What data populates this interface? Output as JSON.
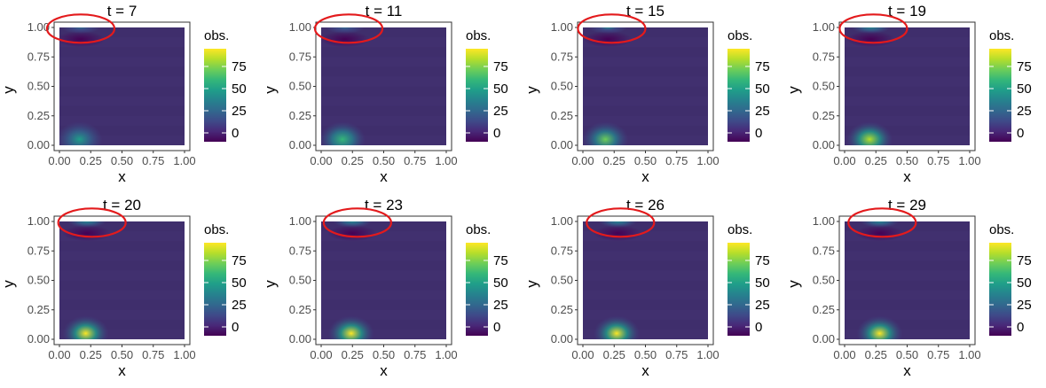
{
  "legend_title": "obs.",
  "colors": {
    "background": "#41306f",
    "circle": "#e31a1c",
    "axis": "#333333"
  },
  "chart_data": [
    {
      "type": "heatmap",
      "title": "t = 7",
      "xlabel": "x",
      "ylabel": "y",
      "xlim": [
        0,
        1
      ],
      "ylim": [
        0,
        1
      ],
      "x_ticks": [
        "0.00",
        "0.25",
        "0.50",
        "0.75",
        "1.00"
      ],
      "y_ticks": [
        "0.00",
        "0.25",
        "0.50",
        "0.75",
        "1.00"
      ],
      "legend": {
        "title": "obs.",
        "ticks": [
          "0",
          "25",
          "50",
          "75"
        ],
        "range": [
          -10,
          95
        ]
      },
      "hotspots": [
        {
          "x": 0.16,
          "y": 0.05,
          "value": 45
        },
        {
          "x": 0.17,
          "y": 1.0,
          "value": 25
        }
      ],
      "coldspots": [
        {
          "x": 0.17,
          "y": 0.9,
          "value": -8
        }
      ],
      "annotation": {
        "shape": "ellipse",
        "cx": 0.17,
        "cy": 0.99
      }
    },
    {
      "type": "heatmap",
      "title": "t = 11",
      "xlabel": "x",
      "ylabel": "y",
      "xlim": [
        0,
        1
      ],
      "ylim": [
        0,
        1
      ],
      "x_ticks": [
        "0.00",
        "0.25",
        "0.50",
        "0.75",
        "1.00"
      ],
      "y_ticks": [
        "0.00",
        "0.25",
        "0.50",
        "0.75",
        "1.00"
      ],
      "legend": {
        "title": "obs.",
        "ticks": [
          "0",
          "25",
          "50",
          "75"
        ],
        "range": [
          -10,
          95
        ]
      },
      "hotspots": [
        {
          "x": 0.17,
          "y": 0.05,
          "value": 60
        },
        {
          "x": 0.19,
          "y": 1.0,
          "value": 30
        }
      ],
      "coldspots": [
        {
          "x": 0.19,
          "y": 0.9,
          "value": -9
        }
      ],
      "annotation": {
        "shape": "ellipse",
        "cx": 0.22,
        "cy": 0.99
      }
    },
    {
      "type": "heatmap",
      "title": "t = 15",
      "xlabel": "x",
      "ylabel": "y",
      "xlim": [
        0,
        1
      ],
      "ylim": [
        0,
        1
      ],
      "x_ticks": [
        "0.00",
        "0.25",
        "0.50",
        "0.75",
        "1.00"
      ],
      "y_ticks": [
        "0.00",
        "0.25",
        "0.50",
        "0.75",
        "1.00"
      ],
      "legend": {
        "title": "obs.",
        "ticks": [
          "0",
          "25",
          "50",
          "75"
        ],
        "range": [
          -10,
          95
        ]
      },
      "hotspots": [
        {
          "x": 0.18,
          "y": 0.05,
          "value": 70
        },
        {
          "x": 0.2,
          "y": 1.0,
          "value": 35
        }
      ],
      "coldspots": [
        {
          "x": 0.2,
          "y": 0.9,
          "value": -10
        }
      ],
      "annotation": {
        "shape": "ellipse",
        "cx": 0.23,
        "cy": 0.99
      }
    },
    {
      "type": "heatmap",
      "title": "t = 19",
      "xlabel": "x",
      "ylabel": "y",
      "xlim": [
        0,
        1
      ],
      "ylim": [
        0,
        1
      ],
      "x_ticks": [
        "0.00",
        "0.25",
        "0.50",
        "0.75",
        "1.00"
      ],
      "y_ticks": [
        "0.00",
        "0.25",
        "0.50",
        "0.75",
        "1.00"
      ],
      "legend": {
        "title": "obs.",
        "ticks": [
          "0",
          "25",
          "50",
          "75"
        ],
        "range": [
          -10,
          95
        ]
      },
      "hotspots": [
        {
          "x": 0.2,
          "y": 0.05,
          "value": 85
        },
        {
          "x": 0.21,
          "y": 1.0,
          "value": 40
        }
      ],
      "coldspots": [
        {
          "x": 0.21,
          "y": 0.9,
          "value": -10
        }
      ],
      "annotation": {
        "shape": "ellipse",
        "cx": 0.23,
        "cy": 0.99
      }
    },
    {
      "type": "heatmap",
      "title": "t = 20",
      "xlabel": "x",
      "ylabel": "y",
      "xlim": [
        0,
        1
      ],
      "ylim": [
        0,
        1
      ],
      "x_ticks": [
        "0.00",
        "0.25",
        "0.50",
        "0.75",
        "1.00"
      ],
      "y_ticks": [
        "0.00",
        "0.25",
        "0.50",
        "0.75",
        "1.00"
      ],
      "legend": {
        "title": "obs.",
        "ticks": [
          "0",
          "25",
          "50",
          "75"
        ],
        "range": [
          -10,
          95
        ]
      },
      "hotspots": [
        {
          "x": 0.21,
          "y": 0.05,
          "value": 90
        },
        {
          "x": 0.22,
          "y": 1.0,
          "value": 40
        }
      ],
      "coldspots": [
        {
          "x": 0.22,
          "y": 0.9,
          "value": -10
        }
      ],
      "annotation": {
        "shape": "ellipse",
        "cx": 0.26,
        "cy": 0.99
      }
    },
    {
      "type": "heatmap",
      "title": "t = 23",
      "xlabel": "x",
      "ylabel": "y",
      "xlim": [
        0,
        1
      ],
      "ylim": [
        0,
        1
      ],
      "x_ticks": [
        "0.00",
        "0.25",
        "0.50",
        "0.75",
        "1.00"
      ],
      "y_ticks": [
        "0.00",
        "0.25",
        "0.50",
        "0.75",
        "1.00"
      ],
      "legend": {
        "title": "obs.",
        "ticks": [
          "0",
          "25",
          "50",
          "75"
        ],
        "range": [
          -10,
          95
        ]
      },
      "hotspots": [
        {
          "x": 0.24,
          "y": 0.05,
          "value": 95
        },
        {
          "x": 0.25,
          "y": 1.0,
          "value": 42
        }
      ],
      "coldspots": [
        {
          "x": 0.25,
          "y": 0.9,
          "value": -10
        }
      ],
      "annotation": {
        "shape": "ellipse",
        "cx": 0.29,
        "cy": 0.99
      }
    },
    {
      "type": "heatmap",
      "title": "t = 26",
      "xlabel": "x",
      "ylabel": "y",
      "xlim": [
        0,
        1
      ],
      "ylim": [
        0,
        1
      ],
      "x_ticks": [
        "0.00",
        "0.25",
        "0.50",
        "0.75",
        "1.00"
      ],
      "y_ticks": [
        "0.00",
        "0.25",
        "0.50",
        "0.75",
        "1.00"
      ],
      "legend": {
        "title": "obs.",
        "ticks": [
          "0",
          "25",
          "50",
          "75"
        ],
        "range": [
          -10,
          95
        ]
      },
      "hotspots": [
        {
          "x": 0.27,
          "y": 0.05,
          "value": 95
        },
        {
          "x": 0.28,
          "y": 1.0,
          "value": 42
        }
      ],
      "coldspots": [
        {
          "x": 0.28,
          "y": 0.9,
          "value": -10
        }
      ],
      "annotation": {
        "shape": "ellipse",
        "cx": 0.3,
        "cy": 0.99
      }
    },
    {
      "type": "heatmap",
      "title": "t = 29",
      "xlabel": "x",
      "ylabel": "y",
      "xlim": [
        0,
        1
      ],
      "ylim": [
        0,
        1
      ],
      "x_ticks": [
        "0.00",
        "0.25",
        "0.50",
        "0.75",
        "1.00"
      ],
      "y_ticks": [
        "0.00",
        "0.25",
        "0.50",
        "0.75",
        "1.00"
      ],
      "legend": {
        "title": "obs.",
        "ticks": [
          "0",
          "25",
          "50",
          "75"
        ],
        "range": [
          -10,
          95
        ]
      },
      "hotspots": [
        {
          "x": 0.28,
          "y": 0.05,
          "value": 95
        },
        {
          "x": 0.28,
          "y": 1.0,
          "value": 42
        }
      ],
      "coldspots": [
        {
          "x": 0.28,
          "y": 0.9,
          "value": -10
        }
      ],
      "annotation": {
        "shape": "ellipse",
        "cx": 0.3,
        "cy": 0.99
      }
    }
  ]
}
